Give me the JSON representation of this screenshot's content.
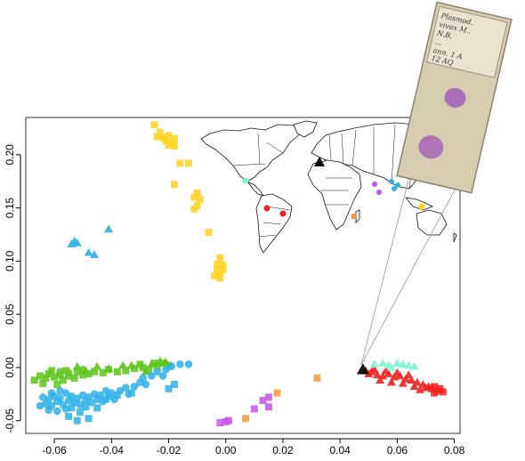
{
  "chart_data": {
    "type": "scatter",
    "title": "",
    "xlabel": "",
    "ylabel": "",
    "xlim": [
      -0.07,
      0.082
    ],
    "ylim": [
      -0.062,
      0.235
    ],
    "x_ticks": [
      "-0.06",
      "-0.04",
      "-0.02",
      "0.00",
      "0.02",
      "0.04",
      "0.06",
      "0.08"
    ],
    "x_tick_values": [
      -0.06,
      -0.04,
      -0.02,
      0.0,
      0.02,
      0.04,
      0.06,
      0.08
    ],
    "y_ticks": [
      "-0.05",
      "0.00",
      "0.05",
      "0.10",
      "0.15",
      "0.20"
    ],
    "y_tick_values": [
      -0.05,
      0.0,
      0.05,
      0.1,
      0.15,
      0.2
    ],
    "grid": false,
    "legend": "none",
    "series": [
      {
        "color": "#5cc51a",
        "marker": "square",
        "points": [
          [
            -0.067,
            -0.012
          ],
          [
            -0.065,
            -0.008
          ],
          [
            -0.063,
            -0.01
          ],
          [
            -0.062,
            -0.006
          ],
          [
            -0.06,
            -0.009
          ],
          [
            -0.058,
            -0.007
          ],
          [
            -0.057,
            -0.012
          ],
          [
            -0.055,
            -0.008
          ],
          [
            -0.053,
            -0.01
          ],
          [
            -0.052,
            -0.004
          ],
          [
            -0.05,
            -0.007
          ],
          [
            -0.048,
            -0.006
          ],
          [
            -0.061,
            -0.003
          ],
          [
            -0.056,
            -0.003
          ],
          [
            -0.064,
            -0.015
          ],
          [
            -0.059,
            -0.016
          ],
          [
            -0.046,
            -0.004
          ],
          [
            -0.043,
            -0.005
          ],
          [
            -0.041,
            -0.002
          ],
          [
            -0.038,
            -0.004
          ],
          [
            -0.035,
            -0.003
          ],
          [
            -0.032,
            -0.001
          ],
          [
            -0.029,
            0.0
          ],
          [
            -0.027,
            -0.002
          ],
          [
            -0.024,
            0.001
          ],
          [
            -0.022,
            0.004
          ],
          [
            -0.02,
            0.002
          ],
          [
            -0.025,
            0.004
          ],
          [
            -0.03,
            0.003
          ]
        ]
      },
      {
        "color": "#5cc51a",
        "marker": "triangle",
        "points": [
          [
            -0.049,
            -0.003
          ],
          [
            -0.045,
            0.001
          ],
          [
            -0.041,
            -0.001
          ],
          [
            -0.036,
            0.002
          ],
          [
            -0.033,
            0.002
          ],
          [
            -0.028,
            -0.004
          ],
          [
            -0.026,
            0.003
          ],
          [
            -0.023,
            0.006
          ],
          [
            -0.021,
            0.005
          ],
          [
            -0.052,
            0.001
          ]
        ]
      },
      {
        "color": "#5cc51a",
        "marker": "circle",
        "points": [
          [
            -0.058,
            -0.004
          ],
          [
            -0.055,
            -0.005
          ],
          [
            -0.05,
            -0.002
          ]
        ]
      },
      {
        "color": "#2eb0e6",
        "marker": "circle",
        "points": [
          [
            -0.065,
            -0.036
          ],
          [
            -0.063,
            -0.034
          ],
          [
            -0.062,
            -0.03
          ],
          [
            -0.061,
            -0.036
          ],
          [
            -0.06,
            -0.027
          ],
          [
            -0.059,
            -0.032
          ],
          [
            -0.058,
            -0.029
          ],
          [
            -0.057,
            -0.035
          ],
          [
            -0.056,
            -0.024
          ],
          [
            -0.055,
            -0.031
          ],
          [
            -0.054,
            -0.027
          ],
          [
            -0.053,
            -0.033
          ],
          [
            -0.052,
            -0.029
          ],
          [
            -0.051,
            -0.035
          ],
          [
            -0.05,
            -0.026
          ],
          [
            -0.049,
            -0.031
          ],
          [
            -0.048,
            -0.028
          ],
          [
            -0.047,
            -0.033
          ],
          [
            -0.046,
            -0.025
          ],
          [
            -0.045,
            -0.03
          ],
          [
            -0.044,
            -0.026
          ],
          [
            -0.043,
            -0.032
          ],
          [
            -0.042,
            -0.022
          ],
          [
            -0.041,
            -0.027
          ],
          [
            -0.04,
            -0.024
          ],
          [
            -0.039,
            -0.03
          ],
          [
            -0.037,
            -0.022
          ],
          [
            -0.035,
            -0.019
          ],
          [
            -0.034,
            -0.025
          ],
          [
            -0.032,
            -0.018
          ],
          [
            -0.03,
            -0.014
          ],
          [
            -0.029,
            -0.01
          ],
          [
            -0.028,
            -0.016
          ],
          [
            -0.026,
            -0.008
          ],
          [
            -0.024,
            -0.004
          ],
          [
            -0.022,
            -0.008
          ],
          [
            -0.021,
            -0.002
          ],
          [
            -0.019,
            0.001
          ],
          [
            -0.016,
            0.003
          ],
          [
            -0.013,
            0.003
          ],
          [
            -0.062,
            -0.04
          ],
          [
            -0.059,
            -0.041
          ],
          [
            -0.056,
            -0.039
          ],
          [
            -0.058,
            -0.022
          ],
          [
            -0.061,
            -0.024
          ],
          [
            -0.064,
            -0.028
          ]
        ]
      },
      {
        "color": "#2eb0e6",
        "marker": "square",
        "points": [
          [
            -0.054,
            -0.038
          ],
          [
            -0.051,
            -0.042
          ],
          [
            -0.049,
            -0.037
          ],
          [
            -0.055,
            -0.046
          ],
          [
            -0.052,
            -0.05
          ],
          [
            -0.048,
            -0.048
          ],
          [
            -0.045,
            -0.038
          ],
          [
            -0.042,
            -0.03
          ],
          [
            -0.038,
            -0.026
          ],
          [
            -0.033,
            -0.024
          ],
          [
            -0.02,
            -0.02
          ],
          [
            -0.018,
            -0.016
          ]
        ]
      },
      {
        "color": "#2eb0e6",
        "marker": "triangle",
        "points": [
          [
            -0.054,
            0.116
          ],
          [
            -0.053,
            0.119
          ],
          [
            -0.052,
            0.117
          ],
          [
            -0.048,
            0.108
          ],
          [
            -0.046,
            0.106
          ],
          [
            -0.041,
            0.13
          ]
        ]
      },
      {
        "color": "#ffd21f",
        "marker": "square",
        "points": [
          [
            -0.025,
            0.228
          ],
          [
            -0.023,
            0.221
          ],
          [
            -0.024,
            0.217
          ],
          [
            -0.022,
            0.216
          ],
          [
            -0.021,
            0.213
          ],
          [
            -0.02,
            0.218
          ],
          [
            -0.019,
            0.211
          ],
          [
            -0.018,
            0.215
          ],
          [
            -0.02,
            0.209
          ],
          [
            -0.018,
            0.208
          ],
          [
            -0.016,
            0.192
          ],
          [
            -0.013,
            0.192
          ],
          [
            -0.018,
            0.172
          ],
          [
            -0.01,
            0.164
          ],
          [
            -0.011,
            0.16
          ],
          [
            -0.009,
            0.158
          ],
          [
            -0.01,
            0.152
          ],
          [
            -0.011,
            0.149
          ],
          [
            -0.006,
            0.127
          ],
          [
            -0.003,
            0.097
          ],
          [
            -0.002,
            0.103
          ],
          [
            -0.001,
            0.096
          ],
          [
            -0.003,
            0.092
          ],
          [
            -0.002,
            0.089
          ],
          [
            -0.001,
            0.092
          ],
          [
            -0.004,
            0.086
          ],
          [
            -0.002,
            0.084
          ]
        ]
      },
      {
        "color": "#c455e8",
        "marker": "square",
        "points": [
          [
            -0.002,
            -0.052
          ],
          [
            0.0,
            -0.051
          ],
          [
            0.001,
            -0.05
          ],
          [
            0.013,
            -0.031
          ],
          [
            0.015,
            -0.028
          ],
          [
            0.01,
            -0.039
          ],
          [
            0.015,
            -0.037
          ]
        ]
      },
      {
        "color": "#f09a3e",
        "marker": "square",
        "points": [
          [
            0.007,
            -0.048
          ],
          [
            0.018,
            -0.024
          ],
          [
            0.032,
            -0.01
          ]
        ]
      },
      {
        "color": "#f22020",
        "marker": "triangle",
        "points": [
          [
            0.049,
            -0.003
          ],
          [
            0.051,
            -0.004
          ],
          [
            0.053,
            -0.007
          ],
          [
            0.055,
            -0.008
          ],
          [
            0.057,
            -0.006
          ],
          [
            0.059,
            -0.009
          ],
          [
            0.061,
            -0.008
          ],
          [
            0.063,
            -0.011
          ],
          [
            0.065,
            -0.012
          ],
          [
            0.067,
            -0.014
          ],
          [
            0.069,
            -0.016
          ],
          [
            0.071,
            -0.018
          ],
          [
            0.054,
            -0.012
          ],
          [
            0.058,
            -0.014
          ],
          [
            0.062,
            -0.015
          ],
          [
            0.066,
            -0.018
          ],
          [
            0.068,
            -0.021
          ],
          [
            0.07,
            -0.019
          ],
          [
            0.05,
            -0.006
          ],
          [
            0.052,
            -0.002
          ],
          [
            0.056,
            -0.003
          ],
          [
            0.06,
            -0.005
          ],
          [
            0.064,
            -0.007
          ]
        ]
      },
      {
        "color": "#f22020",
        "marker": "square",
        "points": [
          [
            0.072,
            -0.02
          ],
          [
            0.073,
            -0.018
          ],
          [
            0.074,
            -0.022
          ],
          [
            0.075,
            -0.02
          ],
          [
            0.076,
            -0.023
          ],
          [
            0.073,
            -0.024
          ]
        ]
      },
      {
        "color": "#7ff5d0",
        "marker": "triangle",
        "points": [
          [
            0.052,
            0.003
          ],
          [
            0.055,
            0.004
          ],
          [
            0.057,
            0.002
          ],
          [
            0.06,
            0.004
          ],
          [
            0.062,
            0.003
          ],
          [
            0.064,
            0.002
          ],
          [
            0.066,
            0.001
          ],
          [
            0.058,
            0.0
          ]
        ]
      },
      {
        "color": "#000000",
        "marker": "triangle",
        "points": [
          [
            0.048,
            -0.002
          ]
        ]
      }
    ]
  },
  "map": {
    "colors": {
      "red": "#f22020",
      "aqua": "#7ff5d0",
      "black": "#000000",
      "purple": "#c455e8",
      "blue": "#2eb0e6",
      "green": "#5cc51a",
      "yellow": "#ffd21f",
      "orange": "#f09a3e"
    }
  },
  "slide": {
    "label_lines": [
      "Plasmod.",
      "vivax M..",
      "N.B.",
      "...",
      "ann. 1 A",
      "12 AQ"
    ],
    "glass_color": "#d8ccb0",
    "smear_color": "#a25fb8"
  }
}
